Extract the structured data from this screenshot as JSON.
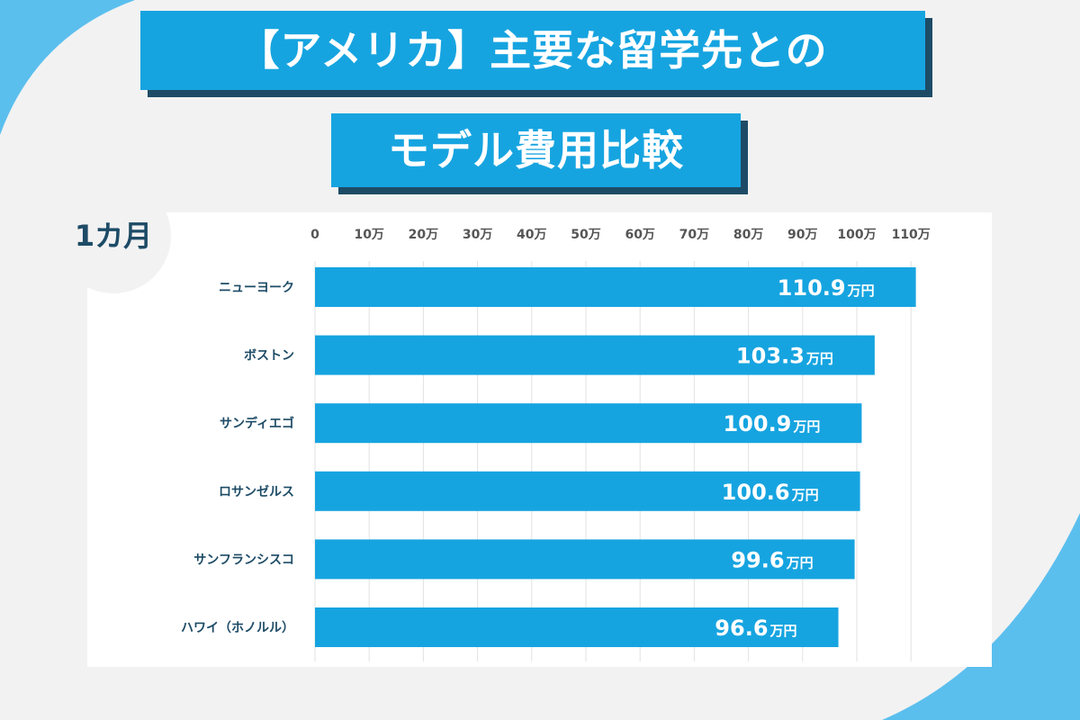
{
  "header": {
    "title_line1": "【アメリカ】主要な留学先との",
    "title_line2": "モデル費用比較",
    "period": "1カ月"
  },
  "colors": {
    "bar": "#16a4e0",
    "title_bg": "#16a4e0",
    "title_shadow": "#1d4b66",
    "label_text": "#1d4b66",
    "deco_circle": "#5bbfee"
  },
  "chart_data": {
    "type": "bar",
    "orientation": "horizontal",
    "title": "【アメリカ】主要な留学先とのモデル費用比較",
    "subtitle": "1カ月",
    "categories": [
      "ニューヨーク",
      "ボストン",
      "サンディエゴ",
      "ロサンゼルス",
      "サンフランシスコ",
      "ハワイ（ホノルル）"
    ],
    "values": [
      110.9,
      103.3,
      100.9,
      100.6,
      99.6,
      96.6
    ],
    "value_labels": [
      "110.9",
      "103.3",
      "100.9",
      "100.6",
      "99.6",
      "96.6"
    ],
    "value_unit": "万円",
    "xlim": [
      0,
      110
    ],
    "xticks": [
      "0",
      "10万",
      "20万",
      "30万",
      "40万",
      "50万",
      "60万",
      "70万",
      "80万",
      "90万",
      "100万",
      "110万"
    ],
    "xlabel": "",
    "ylabel": "",
    "grid": true
  }
}
